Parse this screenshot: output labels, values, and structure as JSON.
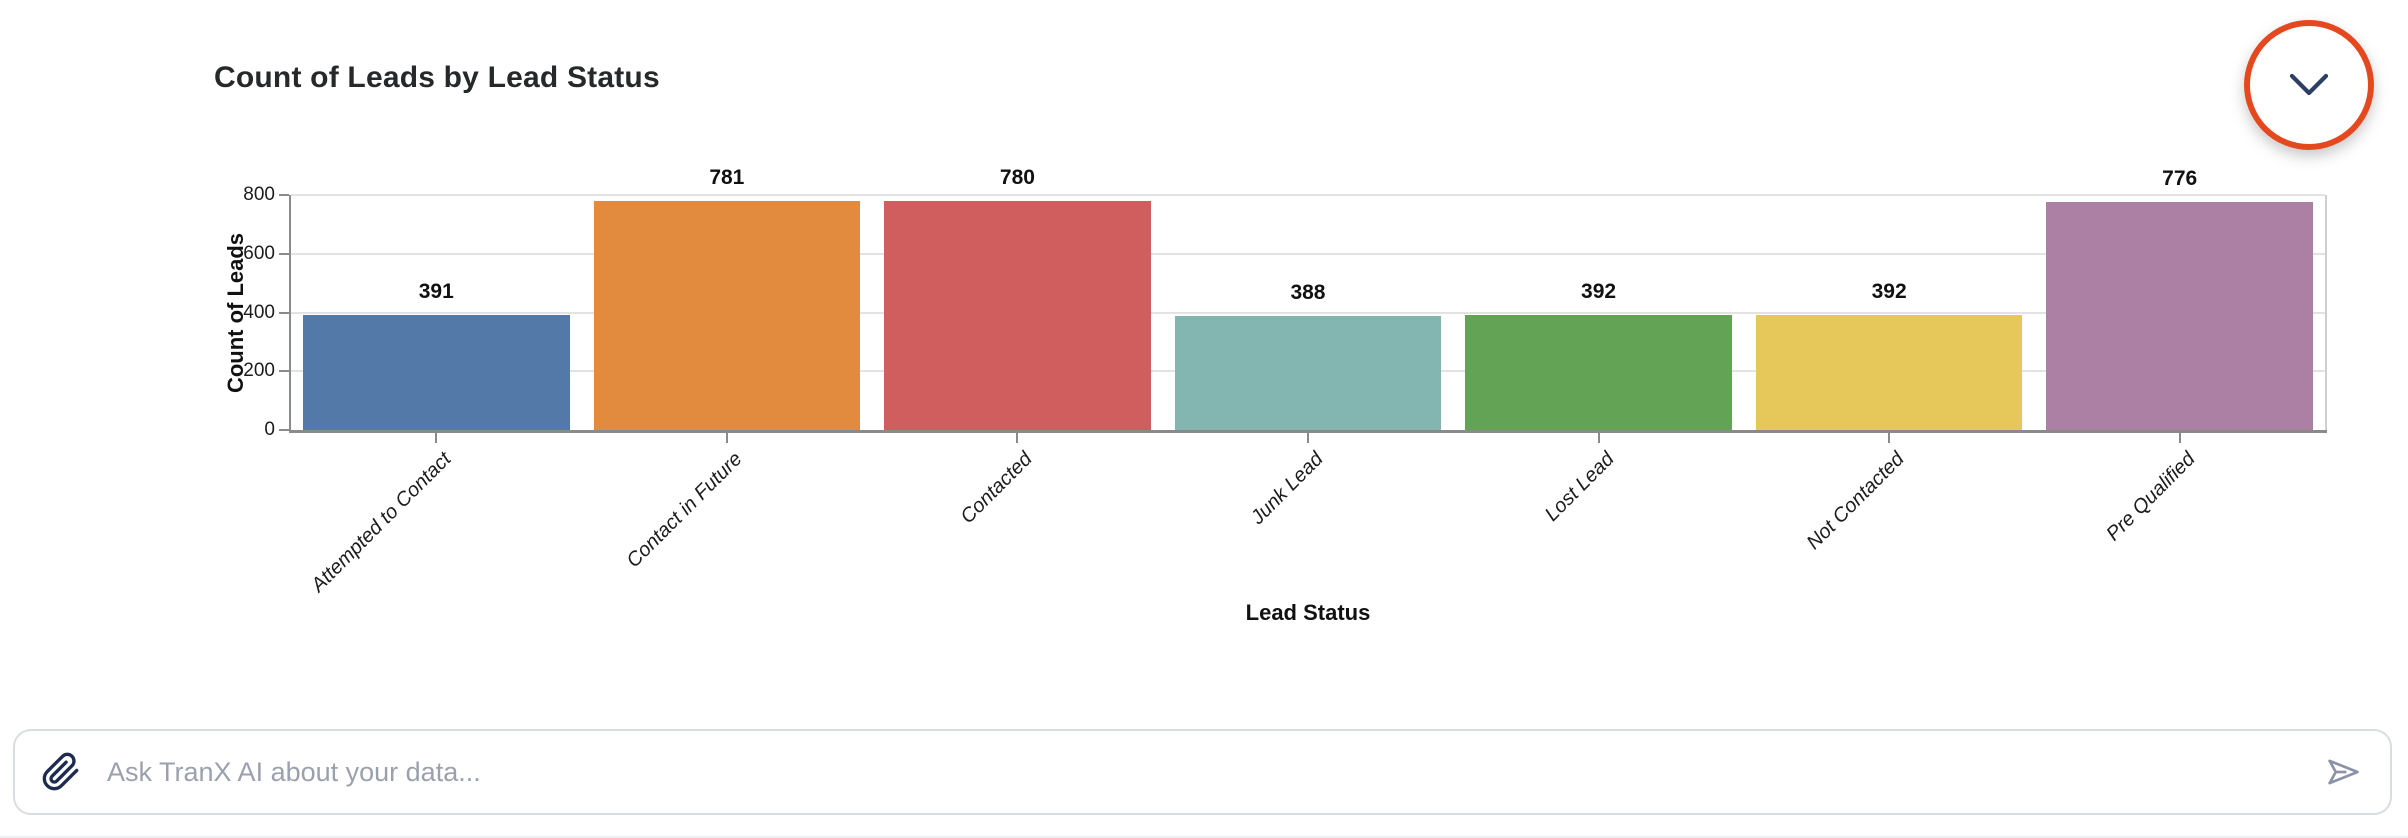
{
  "header": {
    "title": "Count of Leads by Lead Status",
    "collapse_button": {
      "icon": "chevron-down-icon"
    }
  },
  "chart_data": {
    "type": "bar",
    "title": "Count of Leads by Lead Status",
    "categories": [
      "Attempted to Contact",
      "Contact in Future",
      "Contacted",
      "Junk Lead",
      "Lost Lead",
      "Not Contacted",
      "Pre Qualified"
    ],
    "values": [
      391,
      781,
      780,
      388,
      392,
      392,
      776
    ],
    "bar_colors": [
      "#5379a8",
      "#e28a3d",
      "#d05e5e",
      "#84b6b1",
      "#63a356",
      "#e5c75a",
      "#ac80a5"
    ],
    "xlabel": "Lead Status",
    "ylabel": "Count of Leads",
    "ylim": [
      0,
      800
    ],
    "yticks": [
      0,
      200,
      400,
      600,
      800
    ],
    "grid": true,
    "legend_position": "none",
    "value_labels_shown": true,
    "x_tick_rotation": -45
  },
  "ask_bar": {
    "placeholder": "Ask TranX AI about your data...",
    "attach_icon": "paperclip-icon",
    "send_icon": "send-icon"
  },
  "colors": {
    "highlight_ring": "#e5481f",
    "chevron": "#2d3f63",
    "paperclip": "#1d2b50",
    "send": "#8b93a7",
    "placeholder_text": "#9ba1ac",
    "input_border": "#d9dce1",
    "axis_line": "#8a8a8a",
    "gridline": "#e3e3e3",
    "text": "#1c1c1c"
  }
}
